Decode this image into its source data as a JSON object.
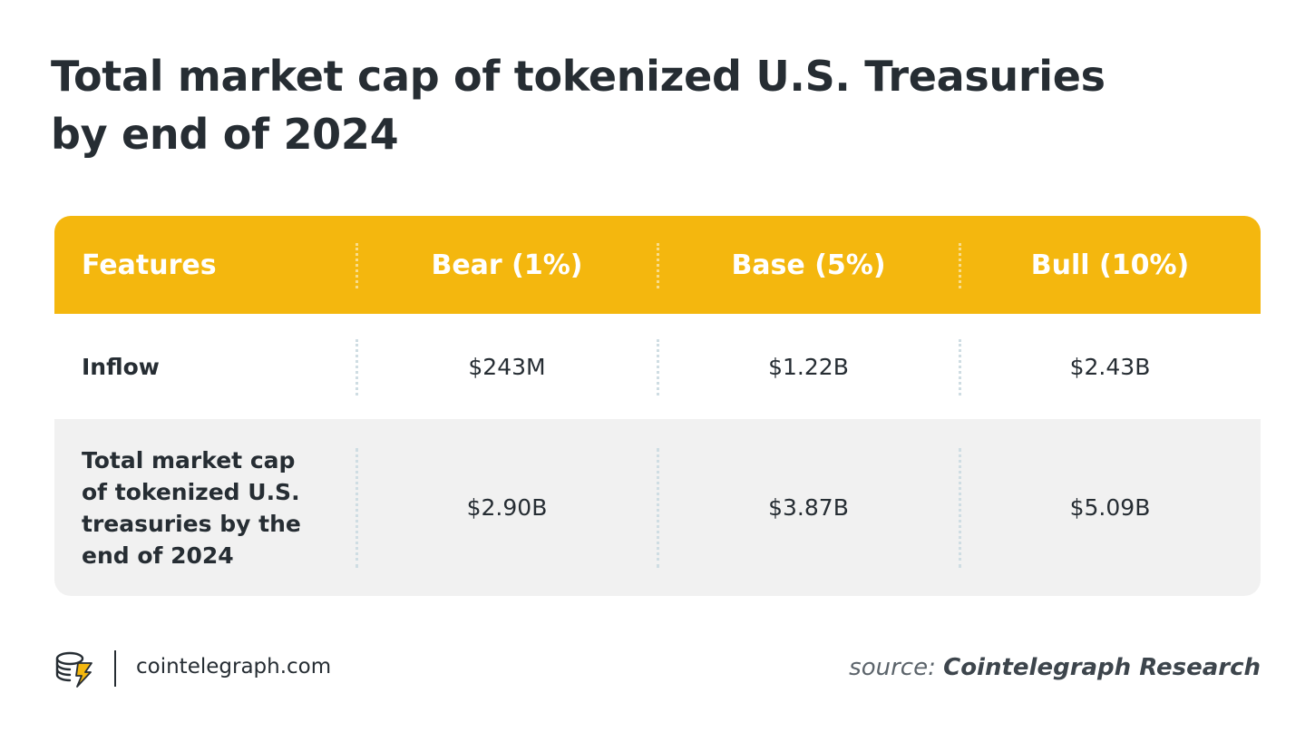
{
  "title": "Total market cap of tokenized U.S. Treasuries by end of 2024",
  "colors": {
    "header_bg": "#f4b70e",
    "header_text": "#ffffff",
    "text": "#262d33",
    "stripe_bg": "#f1f1f1"
  },
  "table": {
    "headers": [
      "Features",
      "Bear (1%)",
      "Base (5%)",
      "Bull (10%)"
    ],
    "rows": [
      {
        "label": "Inflow",
        "values": [
          "$243M",
          "$1.22B",
          "$2.43B"
        ]
      },
      {
        "label": "Total market cap of tokenized U.S. treasuries by the end of 2024",
        "values": [
          "$2.90B",
          "$3.87B",
          "$5.09B"
        ]
      }
    ]
  },
  "footer": {
    "logo_icon": "cointelegraph-logo-icon",
    "site": "cointelegraph.com",
    "source_prefix": "source:",
    "source_name": "Cointelegraph Research"
  }
}
